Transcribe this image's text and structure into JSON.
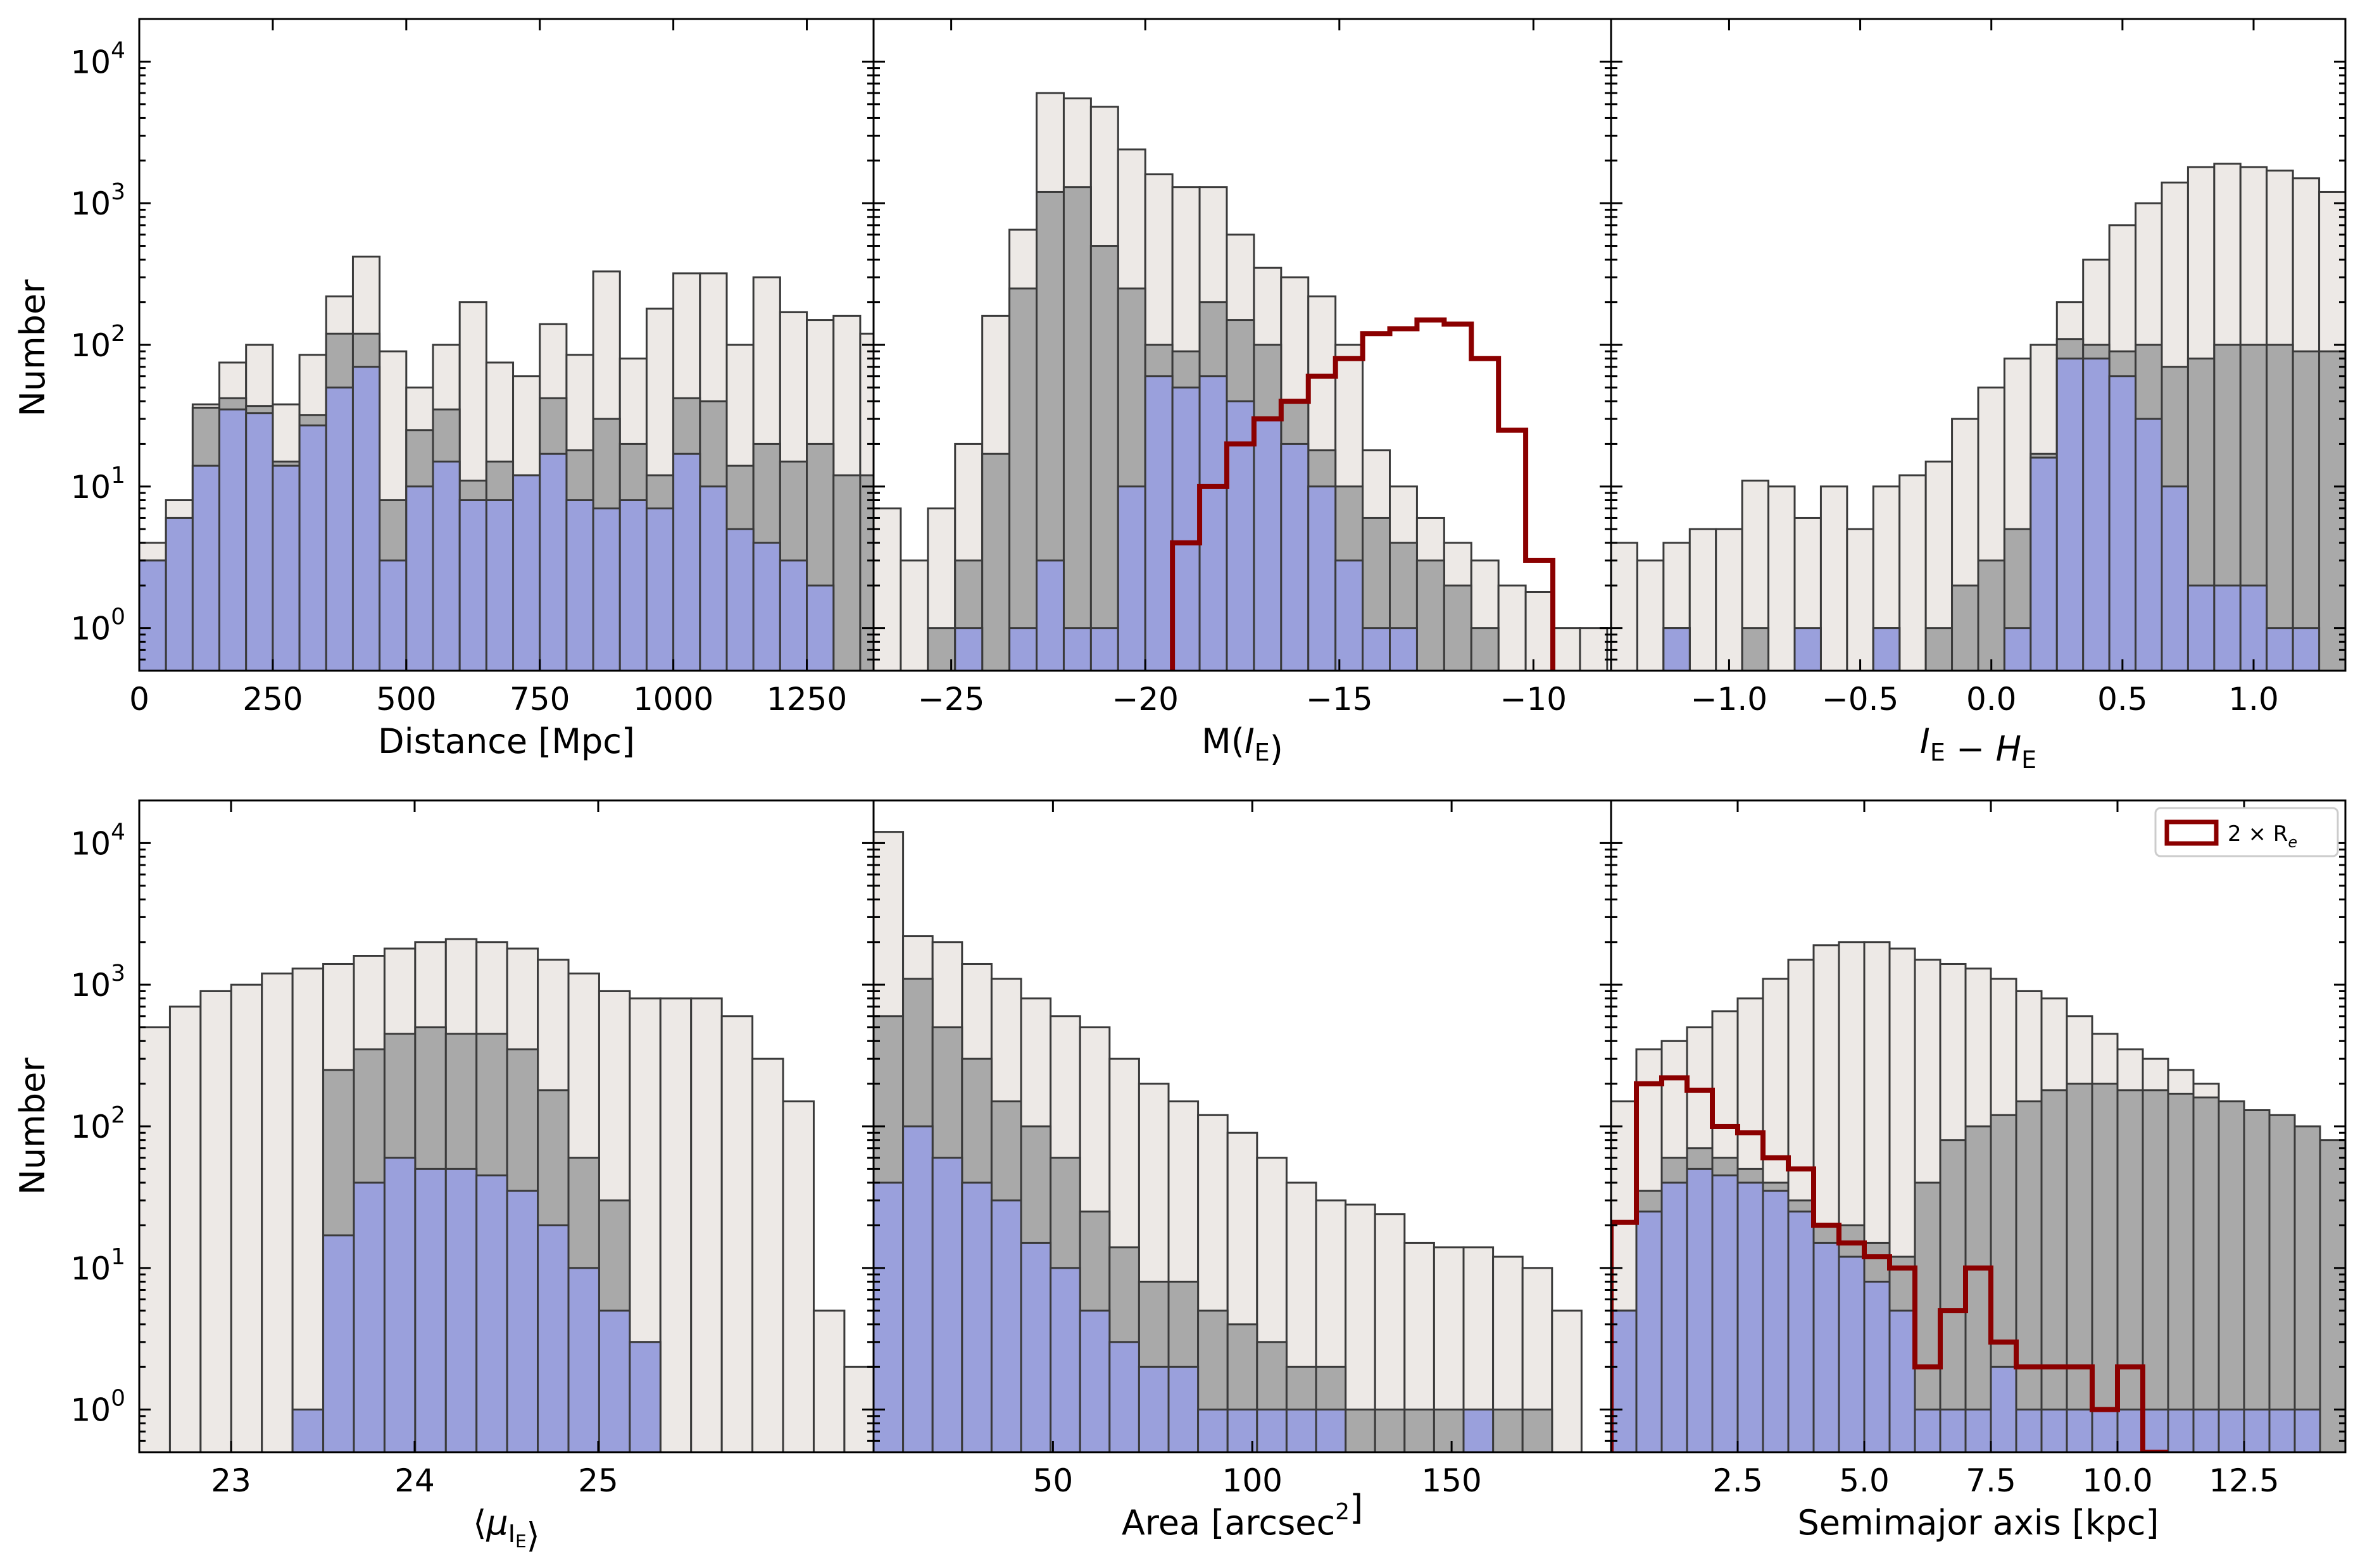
{
  "colors": {
    "light": "#ede9e6",
    "dark": "#a9a9a9",
    "blue": "#9aa0dc",
    "edge": "#3a3a3a",
    "red": "#8b0000"
  },
  "ylabel": "Number",
  "y_ticks": [
    {
      "v": 1,
      "base": "10",
      "exp": "0"
    },
    {
      "v": 10,
      "base": "10",
      "exp": "1"
    },
    {
      "v": 100,
      "base": "10",
      "exp": "2"
    },
    {
      "v": 1000,
      "base": "10",
      "exp": "3"
    },
    {
      "v": 10000,
      "base": "10",
      "exp": "4"
    }
  ],
  "legend": {
    "label": "2 × R",
    "sub": "e"
  },
  "chart_data": [
    {
      "type": "bar",
      "panel": "top-left",
      "xlabel": {
        "text": "Distance [Mpc]"
      },
      "xlim": [
        0,
        1375
      ],
      "ylim": [
        0.5,
        20000
      ],
      "yscale": "log",
      "xticks": [
        {
          "v": 0,
          "label": "0"
        },
        {
          "v": 250,
          "label": "250"
        },
        {
          "v": 500,
          "label": "500"
        },
        {
          "v": 750,
          "label": "750"
        },
        {
          "v": 1000,
          "label": "1000"
        },
        {
          "v": 1250,
          "label": "1250"
        }
      ],
      "bin_start": 0,
      "bin_width": 50,
      "series": [
        {
          "values": [
            4,
            8,
            38,
            75,
            100,
            38,
            85,
            220,
            420,
            90,
            50,
            100,
            200,
            75,
            60,
            140,
            85,
            330,
            80,
            180,
            320,
            320,
            100,
            300,
            170,
            150,
            160,
            120,
            130,
            170,
            120,
            100
          ]
        },
        {
          "values": [
            3,
            6,
            36,
            42,
            37,
            15,
            32,
            120,
            120,
            8,
            25,
            35,
            11,
            15,
            12,
            42,
            18,
            30,
            20,
            12,
            42,
            40,
            14,
            20,
            15,
            20,
            12,
            12,
            12,
            12,
            12,
            35
          ]
        },
        {
          "values": [
            3,
            6,
            14,
            35,
            33,
            14,
            27,
            50,
            70,
            3,
            10,
            15,
            8,
            8,
            12,
            17,
            8,
            7,
            8,
            7,
            17,
            10,
            5,
            4,
            3,
            2,
            0,
            0,
            0,
            2,
            2,
            0
          ]
        }
      ]
    },
    {
      "type": "bar",
      "panel": "top-middle",
      "xlabel": {
        "pre": "M(",
        "italic": "I",
        "sub": "E",
        "post": ")"
      },
      "xlim": [
        -27,
        -8
      ],
      "ylim": [
        0.5,
        20000
      ],
      "yscale": "log",
      "xticks": [
        {
          "v": -25,
          "label": "−25"
        },
        {
          "v": -20,
          "label": "−20"
        },
        {
          "v": -15,
          "label": "−15"
        },
        {
          "v": -10,
          "label": "−10"
        }
      ],
      "bin_start": -27,
      "bin_width": 0.7,
      "series": [
        {
          "values": [
            7,
            3,
            7,
            20,
            160,
            650,
            6000,
            5500,
            4800,
            2400,
            1600,
            1300,
            1300,
            600,
            350,
            300,
            220,
            100,
            18,
            10,
            6,
            4,
            3,
            2,
            1.8,
            1,
            1
          ]
        },
        {
          "values": [
            0,
            0,
            1,
            3,
            17,
            250,
            1200,
            1300,
            500,
            250,
            100,
            90,
            200,
            150,
            100,
            40,
            18,
            10,
            6,
            4,
            3,
            2,
            1,
            0,
            0,
            0,
            0
          ]
        },
        {
          "values": [
            0,
            0,
            0,
            1,
            0,
            1,
            3,
            1,
            1,
            10,
            60,
            50,
            60,
            40,
            30,
            20,
            10,
            3,
            1,
            1,
            0,
            0,
            0,
            0,
            0,
            0,
            0
          ]
        }
      ],
      "step": {
        "edges": [
          -19.3,
          -18.6,
          -17.9,
          -17.2,
          -16.5,
          -15.8,
          -15.1,
          -14.4,
          -13.7,
          -13.0,
          -12.3,
          -11.6,
          -10.9,
          -10.2,
          -9.5
        ],
        "values": [
          4,
          10,
          20,
          30,
          40,
          60,
          80,
          120,
          130,
          150,
          140,
          80,
          25,
          3,
          0.5
        ]
      }
    },
    {
      "type": "bar",
      "panel": "top-right",
      "xlabel": {
        "italic": "I",
        "sub": "E",
        "mid": " − ",
        "italic2": "H",
        "sub2": "E"
      },
      "xlim": [
        -1.45,
        1.35
      ],
      "ylim": [
        0.5,
        20000
      ],
      "yscale": "log",
      "xticks": [
        {
          "v": -1,
          "label": "−1.0"
        },
        {
          "v": -0.5,
          "label": "−0.5"
        },
        {
          "v": 0,
          "label": "0.0"
        },
        {
          "v": 0.5,
          "label": "0.5"
        },
        {
          "v": 1,
          "label": "1.0"
        }
      ],
      "bin_start": -1.45,
      "bin_width": 0.1,
      "series": [
        {
          "values": [
            4,
            3,
            4,
            5,
            5,
            11,
            10,
            6,
            10,
            5,
            10,
            12,
            15,
            30,
            50,
            80,
            100,
            200,
            400,
            700,
            1000,
            1400,
            1800,
            1900,
            1800,
            1700,
            1500,
            1200
          ]
        },
        {
          "values": [
            0,
            0,
            1,
            0,
            0,
            1,
            0,
            0,
            0,
            0,
            1,
            0,
            1,
            2,
            3,
            5,
            17,
            110,
            100,
            90,
            100,
            70,
            80,
            100,
            100,
            100,
            90,
            90
          ]
        },
        {
          "values": [
            0,
            0,
            1,
            0,
            0,
            0,
            0,
            1,
            0,
            0,
            1,
            0,
            0,
            0,
            0,
            1,
            16,
            80,
            80,
            60,
            30,
            10,
            2,
            2,
            2,
            1,
            1,
            0
          ]
        }
      ]
    },
    {
      "type": "bar",
      "panel": "bottom-left",
      "xlabel": {
        "pre": "⟨",
        "italic": "μ",
        "sub": "I",
        "subsub": "E",
        "post": "⟩"
      },
      "xlim": [
        22.5,
        26.5
      ],
      "ylim": [
        0.5,
        20000
      ],
      "yscale": "log",
      "xticks": [
        {
          "v": 23,
          "label": "23"
        },
        {
          "v": 24,
          "label": "24"
        },
        {
          "v": 25,
          "label": "25"
        }
      ],
      "bin_start": 22.5,
      "bin_width": 0.167,
      "series": [
        {
          "values": [
            500,
            700,
            900,
            1000,
            1200,
            1300,
            1400,
            1600,
            1800,
            2000,
            2100,
            2000,
            1800,
            1500,
            1200,
            900,
            800,
            800,
            800,
            600,
            300,
            150,
            5,
            2
          ]
        },
        {
          "values": [
            0,
            0,
            0,
            0,
            0,
            0,
            250,
            350,
            450,
            500,
            450,
            450,
            350,
            180,
            60,
            30,
            3,
            0,
            0,
            0,
            0,
            0,
            0,
            0
          ]
        },
        {
          "values": [
            0,
            0,
            0,
            0,
            0,
            1,
            17,
            40,
            60,
            50,
            50,
            45,
            35,
            20,
            10,
            5,
            3,
            0,
            0,
            0,
            0,
            0,
            0,
            0
          ]
        }
      ]
    },
    {
      "type": "bar",
      "panel": "bottom-middle",
      "xlabel": {
        "pre": "Area [arcsec",
        "sup": "2",
        "post": "]"
      },
      "xlim": [
        5,
        190
      ],
      "ylim": [
        0.5,
        20000
      ],
      "yscale": "log",
      "xticks": [
        {
          "v": 50,
          "label": "50"
        },
        {
          "v": 100,
          "label": "100"
        },
        {
          "v": 150,
          "label": "150"
        }
      ],
      "bin_start": 5,
      "bin_width": 7.4,
      "series": [
        {
          "values": [
            12000,
            2200,
            2000,
            1400,
            1100,
            800,
            600,
            500,
            300,
            200,
            150,
            120,
            90,
            60,
            40,
            30,
            28,
            24,
            15,
            14,
            14,
            12,
            10,
            5
          ]
        },
        {
          "values": [
            600,
            1100,
            500,
            300,
            150,
            100,
            60,
            25,
            14,
            8,
            8,
            5,
            4,
            3,
            2,
            2,
            1,
            1,
            1,
            1,
            1,
            1,
            1,
            0
          ]
        },
        {
          "values": [
            40,
            100,
            60,
            40,
            30,
            15,
            10,
            5,
            3,
            2,
            2,
            1,
            1,
            1,
            1,
            1,
            0,
            0,
            0,
            0,
            1,
            0,
            0,
            0
          ]
        }
      ]
    },
    {
      "type": "bar",
      "panel": "bottom-right",
      "xlabel": {
        "text": "Semimajor axis [kpc]"
      },
      "xlim": [
        0,
        14.5
      ],
      "ylim": [
        0.5,
        20000
      ],
      "yscale": "log",
      "xticks": [
        {
          "v": 2.5,
          "label": "2.5"
        },
        {
          "v": 5,
          "label": "5.0"
        },
        {
          "v": 7.5,
          "label": "7.5"
        },
        {
          "v": 10,
          "label": "10.0"
        },
        {
          "v": 12.5,
          "label": "12.5"
        }
      ],
      "bin_start": 0,
      "bin_width": 0.5,
      "series": [
        {
          "values": [
            150,
            350,
            400,
            500,
            650,
            800,
            1100,
            1500,
            1900,
            2000,
            2000,
            1800,
            1500,
            1400,
            1300,
            1100,
            900,
            800,
            600,
            450,
            350,
            300,
            250,
            200,
            150,
            120,
            100,
            80,
            70
          ]
        },
        {
          "values": [
            5,
            35,
            60,
            70,
            60,
            50,
            40,
            30,
            20,
            20,
            15,
            12,
            40,
            80,
            100,
            120,
            150,
            180,
            200,
            200,
            180,
            180,
            170,
            160,
            150,
            130,
            120,
            100,
            80
          ]
        },
        {
          "values": [
            5,
            25,
            40,
            50,
            45,
            40,
            35,
            25,
            15,
            12,
            8,
            5,
            1,
            1,
            1,
            2,
            1,
            1,
            1,
            1,
            1,
            1,
            1,
            1,
            1,
            1,
            1,
            1,
            0
          ]
        }
      ],
      "step": {
        "edges": [
          0,
          0.5,
          1.0,
          1.5,
          2.0,
          2.5,
          3.0,
          3.5,
          4.0,
          4.5,
          5.0,
          5.5,
          6.0,
          6.5,
          7.0,
          7.5,
          8.0,
          8.5,
          9.0,
          9.5,
          10.0,
          10.5,
          11.0
        ],
        "values": [
          21,
          200,
          220,
          180,
          100,
          90,
          60,
          50,
          20,
          15,
          12,
          10,
          2,
          5,
          10,
          3,
          2,
          2,
          2,
          1,
          2,
          0.5
        ]
      }
    }
  ]
}
